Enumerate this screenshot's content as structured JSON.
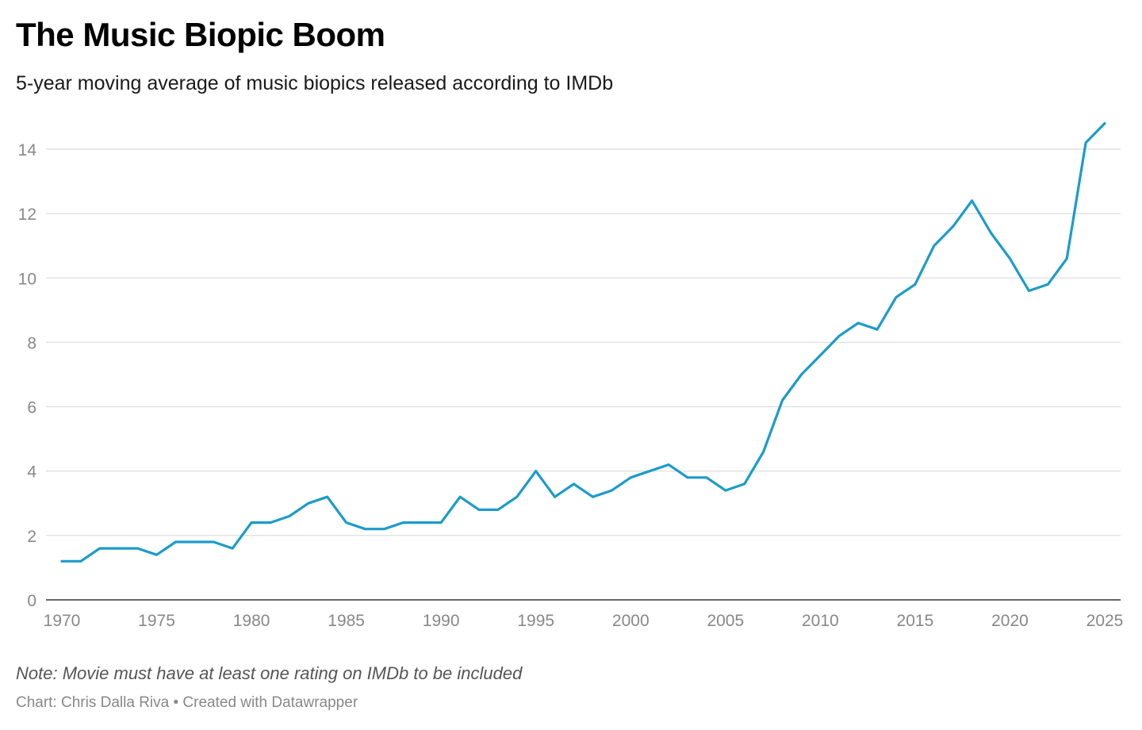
{
  "chart_data": {
    "type": "line",
    "title": "The Music Biopic Boom",
    "subtitle": "5-year moving average of music biopics released according to IMDb",
    "xlabel": "",
    "ylabel": "",
    "x": [
      1970,
      1971,
      1972,
      1973,
      1974,
      1975,
      1976,
      1977,
      1978,
      1979,
      1980,
      1981,
      1982,
      1983,
      1984,
      1985,
      1986,
      1987,
      1988,
      1989,
      1990,
      1991,
      1992,
      1993,
      1994,
      1995,
      1996,
      1997,
      1998,
      1999,
      2000,
      2001,
      2002,
      2003,
      2004,
      2005,
      2006,
      2007,
      2008,
      2009,
      2010,
      2011,
      2012,
      2013,
      2014,
      2015,
      2016,
      2017,
      2018,
      2019,
      2020,
      2021,
      2022,
      2023,
      2024,
      2025
    ],
    "series": [
      {
        "values": [
          1.2,
          1.2,
          1.6,
          1.6,
          1.6,
          1.4,
          1.8,
          1.8,
          1.8,
          1.6,
          2.4,
          2.4,
          2.6,
          3.0,
          3.2,
          2.4,
          2.2,
          2.2,
          2.4,
          2.4,
          2.4,
          3.2,
          2.8,
          2.8,
          3.2,
          4.0,
          3.2,
          3.6,
          3.2,
          3.4,
          3.8,
          4.0,
          4.2,
          3.8,
          3.8,
          3.4,
          3.6,
          4.6,
          6.2,
          7.0,
          7.6,
          8.2,
          8.6,
          8.4,
          9.4,
          9.8,
          11.0,
          11.6,
          12.4,
          11.4,
          10.6,
          9.6,
          9.8,
          10.6,
          14.2,
          14.8
        ],
        "color": "#1d9bcb"
      }
    ],
    "xlim": [
      1970,
      2025
    ],
    "ylim": [
      0,
      14
    ],
    "x_ticks": [
      "1970",
      "1975",
      "1980",
      "1985",
      "1990",
      "1995",
      "2000",
      "2005",
      "2010",
      "2015",
      "2020",
      "2025"
    ],
    "y_ticks": [
      "0",
      "2",
      "4",
      "6",
      "8",
      "10",
      "12",
      "14"
    ],
    "grid": true,
    "legend": "none",
    "note": "Note: Movie must have at least one rating on IMDb to be included",
    "credit": "Chart: Chris Dalla Riva • Created with Datawrapper",
    "colors": {
      "line": "#1d9bcb",
      "grid": "#e1e1e1",
      "axis": "#333333",
      "tick_label": "#888888"
    }
  }
}
